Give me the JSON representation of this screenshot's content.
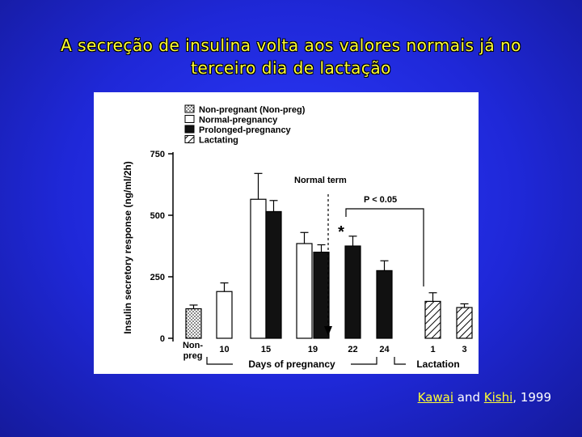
{
  "slide": {
    "title_line1": "A secreção de insulina volta aos valores normais já no",
    "title_line2": "terceiro dia de lactação"
  },
  "citation": {
    "author1": "Kawai",
    "connector": " and ",
    "author2": "Kishi",
    "year": ", 1999"
  },
  "chart_data": {
    "type": "bar",
    "ylabel": "Insulin secretory response (ng/ml/2h)",
    "ylim": [
      0,
      750
    ],
    "yticks": [
      0,
      250,
      500,
      750
    ],
    "legend": {
      "position": "top-left",
      "entries": [
        {
          "name": "Non-pregnant (Non-preg)",
          "pattern": "dotted"
        },
        {
          "name": "Normal-pregnancy",
          "pattern": "white"
        },
        {
          "name": "Prolonged-pregnancy",
          "pattern": "black"
        },
        {
          "name": "Lactating",
          "pattern": "hatched"
        }
      ]
    },
    "groups": [
      {
        "label": "Non-preg",
        "bars": [
          {
            "series": "Non-pregnant (Non-preg)",
            "value": 120,
            "error": 15
          }
        ]
      },
      {
        "label": "10",
        "bars": [
          {
            "series": "Normal-pregnancy",
            "value": 190,
            "error": 35
          }
        ]
      },
      {
        "label": "15",
        "bars": [
          {
            "series": "Normal-pregnancy",
            "value": 565,
            "error": 105
          },
          {
            "series": "Prolonged-pregnancy",
            "value": 515,
            "error": 45
          }
        ]
      },
      {
        "label": "19",
        "bars": [
          {
            "series": "Normal-pregnancy",
            "value": 385,
            "error": 45
          },
          {
            "series": "Prolonged-pregnancy",
            "value": 350,
            "error": 30
          }
        ]
      },
      {
        "label": "22",
        "bars": [
          {
            "series": "Prolonged-pregnancy",
            "value": 375,
            "error": 40
          }
        ]
      },
      {
        "label": "24",
        "bars": [
          {
            "series": "Prolonged-pregnancy",
            "value": 275,
            "error": 40
          }
        ]
      },
      {
        "label": "1",
        "bars": [
          {
            "series": "Lactating",
            "value": 150,
            "error": 35
          }
        ]
      },
      {
        "label": "3",
        "bars": [
          {
            "series": "Lactating",
            "value": 125,
            "error": 15
          }
        ]
      }
    ],
    "xlabel_pregnancy": "Days of pregnancy",
    "xlabel_lactation": "Lactation",
    "annotations": {
      "normal_term": "Normal term",
      "significance": "P < 0.05",
      "asterisk": "*"
    }
  }
}
